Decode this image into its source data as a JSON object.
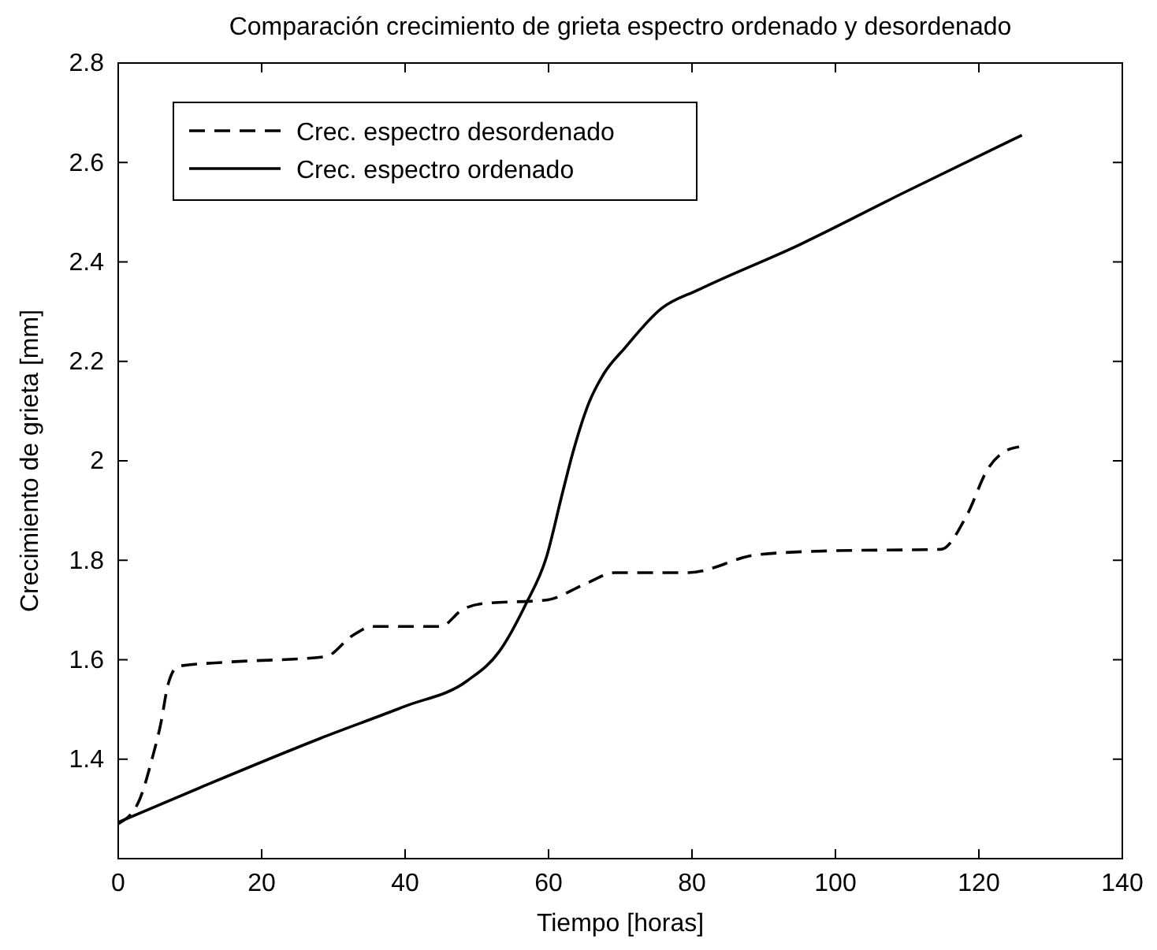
{
  "chart_data": {
    "type": "line",
    "title": "Comparación crecimiento de grieta espectro ordenado y desordenado",
    "xlabel": "Tiempo [horas]",
    "ylabel": "Crecimiento de grieta [mm]",
    "xlim": [
      0,
      140
    ],
    "xticks": [
      0,
      20,
      40,
      60,
      80,
      100,
      120,
      140
    ],
    "ylim": [
      1.2,
      2.8
    ],
    "yticks": [
      1.4,
      1.6,
      1.8,
      2,
      2.2,
      2.4,
      2.6,
      2.8
    ],
    "legend": "top left",
    "grid": false,
    "marker": "none",
    "series": [
      {
        "name": "Crec. espectro desordenado",
        "color": "#000000",
        "line_style": "dashed",
        "x": [
          0,
          2.9,
          4.8,
          5.9,
          7,
          8.4,
          15,
          28.9,
          32.6,
          35.5,
          45,
          47.9,
          50.9,
          59.7,
          65.2,
          69.2,
          79.5,
          89,
          99.3,
          114.7,
          118.3,
          121.3,
          123.4,
          125.6
        ],
        "values": [
          1.27,
          1.316,
          1.405,
          1.469,
          1.553,
          1.587,
          1.595,
          1.606,
          1.648,
          1.667,
          1.667,
          1.7,
          1.713,
          1.72,
          1.753,
          1.775,
          1.775,
          1.811,
          1.819,
          1.822,
          1.89,
          1.985,
          2.017,
          2.028
        ]
      },
      {
        "name": "Crec. espectro ordenado",
        "color": "#000000",
        "line_style": "solid",
        "x": [
          0,
          12.1,
          28.2,
          39.9,
          48.7,
          53.1,
          56.8,
          59.7,
          61.9,
          63.4,
          65.5,
          67.7,
          70.7,
          75.8,
          80.9,
          94.9,
          109.5,
          126
        ],
        "values": [
          1.273,
          1.347,
          1.442,
          1.506,
          1.558,
          1.616,
          1.711,
          1.806,
          1.933,
          2.017,
          2.112,
          2.175,
          2.228,
          2.307,
          2.344,
          2.434,
          2.539,
          2.655
        ]
      }
    ]
  }
}
